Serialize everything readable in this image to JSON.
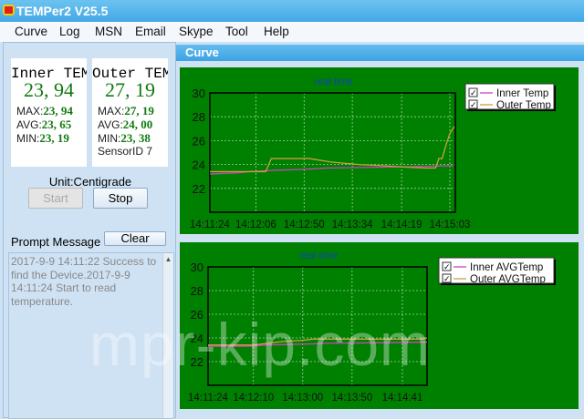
{
  "window": {
    "title": "TEMPer2 V25.5",
    "icon": "app-thermometer-icon"
  },
  "menu": [
    "Curve",
    "Log",
    "MSN",
    "Email",
    "Skype",
    "Tool",
    "Help"
  ],
  "inner": {
    "title": "Inner TEMP",
    "value": "23, 94",
    "max_label": "MAX:",
    "max": "23, 94",
    "avg_label": "AVG:",
    "avg": "23, 65",
    "min_label": "MIN:",
    "min": "23, 19"
  },
  "outer": {
    "title": "Outer TEMP",
    "value": "27, 19",
    "max_label": "MAX:",
    "max": "27, 19",
    "avg_label": "AVG:",
    "avg": "24, 00",
    "min_label": "MIN:",
    "min": "23, 38",
    "sensor_label": "SensorID",
    "sensor": "7"
  },
  "unit": "Unit:Centigrade",
  "buttons": {
    "start": "Start",
    "stop": "Stop",
    "clear": "Clear"
  },
  "prompt": {
    "label": "Prompt Message",
    "text": "2017-9-9 14:11:22 Success to find the Device.2017-9-9 14:11:24 Start to read temperature."
  },
  "curve_window": {
    "title": "Curve"
  },
  "watermark": "mpr-kip.com",
  "colors": {
    "plot_bg": "#008000",
    "inner": "#d040c0",
    "outer": "#c8a040",
    "title": "#1040c0"
  },
  "chart_data": [
    {
      "type": "line",
      "title": "real time",
      "ylim": [
        20,
        30
      ],
      "yticks": [
        22,
        24,
        26,
        28,
        30
      ],
      "xticks": [
        "14:11:24",
        "14:12:06",
        "14:12:50",
        "14:13:34",
        "14:14:19",
        "14:15:03"
      ],
      "xlim": [
        "14:11:24",
        "14:15:08"
      ],
      "grid": true,
      "legend": "top-right",
      "series": [
        {
          "name": "Inner Temp",
          "points": [
            [
              "14:11:24",
              23.2
            ],
            [
              "14:11:50",
              23.3
            ],
            [
              "14:12:00",
              23.4
            ],
            [
              "14:12:20",
              23.5
            ],
            [
              "14:12:50",
              23.6
            ],
            [
              "14:13:10",
              23.7
            ],
            [
              "14:14:19",
              23.8
            ],
            [
              "14:14:45",
              23.85
            ],
            [
              "14:15:06",
              23.9
            ]
          ]
        },
        {
          "name": "Outer Temp",
          "points": [
            [
              "14:11:24",
              23.4
            ],
            [
              "14:12:15",
              23.4
            ],
            [
              "14:12:20",
              24.5
            ],
            [
              "14:12:55",
              24.5
            ],
            [
              "14:13:15",
              24.2
            ],
            [
              "14:13:40",
              24.0
            ],
            [
              "14:14:00",
              23.9
            ],
            [
              "14:14:19",
              23.8
            ],
            [
              "14:14:40",
              23.7
            ],
            [
              "14:14:50",
              23.7
            ],
            [
              "14:14:53",
              24.5
            ],
            [
              "14:14:56",
              24.5
            ],
            [
              "14:14:59",
              25.5
            ],
            [
              "14:15:03",
              26.6
            ],
            [
              "14:15:07",
              27.19
            ]
          ]
        }
      ]
    },
    {
      "type": "line",
      "title": "real time",
      "ylim": [
        20,
        30
      ],
      "yticks": [
        22,
        24,
        26,
        28,
        30
      ],
      "xticks": [
        "14:11:24",
        "14:12:10",
        "14:13:00",
        "14:13:50",
        "14:14:41"
      ],
      "xlim": [
        "14:11:24",
        "14:15:06"
      ],
      "grid": true,
      "legend": "top-right",
      "series": [
        {
          "name": "Inner AVGTemp",
          "points": [
            [
              "14:11:24",
              23.3
            ],
            [
              "14:12:10",
              23.3
            ],
            [
              "14:12:20",
              23.4
            ],
            [
              "14:13:10",
              23.5
            ],
            [
              "14:13:20",
              23.55
            ],
            [
              "14:14:30",
              23.6
            ],
            [
              "14:15:06",
              23.65
            ]
          ]
        },
        {
          "name": "Outer AVGTemp",
          "points": [
            [
              "14:11:24",
              23.4
            ],
            [
              "14:12:10",
              23.4
            ],
            [
              "14:12:40",
              23.7
            ],
            [
              "14:13:00",
              23.8
            ],
            [
              "14:13:10",
              23.9
            ],
            [
              "14:15:00",
              23.9
            ],
            [
              "14:15:06",
              24.0
            ]
          ]
        }
      ]
    }
  ]
}
